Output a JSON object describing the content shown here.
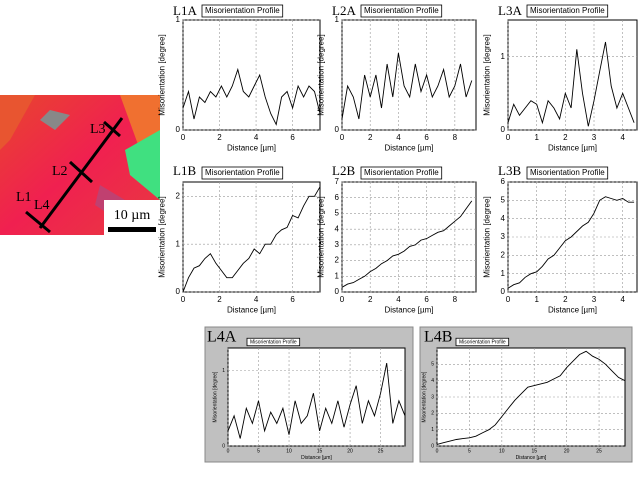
{
  "micrograph": {
    "line_labels": [
      "L1",
      "L2",
      "L3",
      "L4"
    ],
    "scale_bar": "10 µm"
  },
  "chart_data": [
    {
      "type": "line",
      "label": "L1A",
      "title": "Misorientation Profile",
      "xlabel": "Distance [µm]",
      "ylabel": "Misorientation [degree]",
      "color": "#000000",
      "grid": true,
      "x": [
        0,
        0.3,
        0.6,
        0.9,
        1.2,
        1.5,
        1.8,
        2.1,
        2.4,
        2.7,
        3.0,
        3.3,
        3.6,
        3.9,
        4.2,
        4.5,
        4.8,
        5.1,
        5.4,
        5.7,
        6.0,
        6.3,
        6.6,
        6.9,
        7.2,
        7.5
      ],
      "values": [
        0.2,
        0.35,
        0.1,
        0.3,
        0.25,
        0.35,
        0.3,
        0.4,
        0.3,
        0.4,
        0.55,
        0.35,
        0.3,
        0.4,
        0.5,
        0.3,
        0.15,
        0.05,
        0.3,
        0.35,
        0.2,
        0.4,
        0.3,
        0.4,
        0.35,
        0.15
      ],
      "xlim": [
        0,
        7.5
      ],
      "ylim": [
        0,
        1
      ],
      "xticks": [
        0,
        2,
        4,
        6
      ],
      "yticks": [
        0,
        1
      ]
    },
    {
      "type": "line",
      "label": "L2A",
      "title": "Misorientation Profile",
      "xlabel": "Distance [µm]",
      "ylabel": "Misorientation [degree]",
      "color": "#000000",
      "grid": true,
      "x": [
        0,
        0.4,
        0.8,
        1.2,
        1.6,
        2.0,
        2.4,
        2.8,
        3.2,
        3.6,
        4.0,
        4.4,
        4.8,
        5.2,
        5.6,
        6.0,
        6.4,
        6.8,
        7.2,
        7.6,
        8.0,
        8.4,
        8.8,
        9.2
      ],
      "values": [
        0.1,
        0.4,
        0.3,
        0.1,
        0.5,
        0.3,
        0.5,
        0.2,
        0.6,
        0.3,
        0.7,
        0.4,
        0.3,
        0.6,
        0.35,
        0.5,
        0.3,
        0.4,
        0.55,
        0.3,
        0.4,
        0.6,
        0.3,
        0.45
      ],
      "xlim": [
        0,
        9.5
      ],
      "ylim": [
        0,
        1
      ],
      "xticks": [
        0,
        2,
        4,
        6,
        8
      ],
      "yticks": [
        0,
        1
      ]
    },
    {
      "type": "line",
      "label": "L3A",
      "title": "Misorientation Profile",
      "xlabel": "Distance [µm]",
      "ylabel": "Misorientation [degree]",
      "color": "#000000",
      "grid": true,
      "x": [
        0,
        0.2,
        0.4,
        0.6,
        0.8,
        1.0,
        1.2,
        1.4,
        1.6,
        1.8,
        2.0,
        2.2,
        2.4,
        2.6,
        2.8,
        3.0,
        3.2,
        3.4,
        3.6,
        3.8,
        4.0,
        4.2,
        4.4
      ],
      "values": [
        0.1,
        0.35,
        0.2,
        0.3,
        0.4,
        0.35,
        0.1,
        0.4,
        0.3,
        0.15,
        0.5,
        0.3,
        1.1,
        0.5,
        0.05,
        0.4,
        0.8,
        1.2,
        0.6,
        0.3,
        0.5,
        0.3,
        0.1
      ],
      "xlim": [
        0,
        4.5
      ],
      "ylim": [
        0,
        1.5
      ],
      "xticks": [
        0,
        1,
        2,
        3,
        4
      ],
      "yticks": [
        0,
        1
      ]
    },
    {
      "type": "line",
      "label": "L1B",
      "title": "Misorientation Profile",
      "xlabel": "Distance [µm]",
      "ylabel": "Misorientation [degree]",
      "color": "#000000",
      "grid": true,
      "x": [
        0,
        0.3,
        0.6,
        0.9,
        1.2,
        1.5,
        1.8,
        2.1,
        2.4,
        2.7,
        3.0,
        3.3,
        3.6,
        3.9,
        4.2,
        4.5,
        4.8,
        5.1,
        5.4,
        5.7,
        6.0,
        6.3,
        6.6,
        6.9,
        7.2,
        7.5
      ],
      "values": [
        0,
        0.3,
        0.5,
        0.55,
        0.7,
        0.8,
        0.6,
        0.45,
        0.3,
        0.3,
        0.45,
        0.6,
        0.7,
        0.9,
        0.8,
        1.0,
        1.0,
        1.2,
        1.3,
        1.35,
        1.6,
        1.55,
        1.8,
        2.0,
        2.0,
        2.2
      ],
      "xlim": [
        0,
        7.5
      ],
      "ylim": [
        0,
        2.3
      ],
      "xticks": [
        0,
        2,
        4,
        6
      ],
      "yticks": [
        0,
        1,
        2
      ]
    },
    {
      "type": "line",
      "label": "L2B",
      "title": "Misorientation Profile",
      "xlabel": "Distance [µm]",
      "ylabel": "Misorientation [degree]",
      "color": "#000000",
      "grid": true,
      "x": [
        0,
        0.4,
        0.8,
        1.2,
        1.6,
        2.0,
        2.4,
        2.8,
        3.2,
        3.6,
        4.0,
        4.4,
        4.8,
        5.2,
        5.6,
        6.0,
        6.4,
        6.8,
        7.2,
        7.6,
        8.0,
        8.4,
        8.8,
        9.2
      ],
      "values": [
        0.3,
        0.5,
        0.6,
        0.8,
        1.0,
        1.3,
        1.5,
        1.8,
        2.0,
        2.3,
        2.4,
        2.6,
        2.9,
        3.0,
        3.3,
        3.4,
        3.6,
        3.8,
        3.9,
        4.2,
        4.5,
        4.8,
        5.3,
        5.8
      ],
      "xlim": [
        0,
        9.5
      ],
      "ylim": [
        0,
        7
      ],
      "xticks": [
        0,
        2,
        4,
        6,
        8
      ],
      "yticks": [
        0,
        1,
        2,
        3,
        4,
        5,
        6,
        7
      ]
    },
    {
      "type": "line",
      "label": "L3B",
      "title": "Misorientation Profile",
      "xlabel": "Distance [µm]",
      "ylabel": "Misorientation [degree]",
      "color": "#000000",
      "grid": true,
      "x": [
        0,
        0.2,
        0.4,
        0.6,
        0.8,
        1.0,
        1.2,
        1.4,
        1.6,
        1.8,
        2.0,
        2.2,
        2.4,
        2.6,
        2.8,
        3.0,
        3.2,
        3.4,
        3.6,
        3.8,
        4.0,
        4.2,
        4.4
      ],
      "values": [
        0.2,
        0.4,
        0.5,
        0.8,
        1.0,
        1.1,
        1.4,
        1.8,
        2.0,
        2.4,
        2.8,
        3.0,
        3.3,
        3.6,
        3.8,
        4.3,
        5.0,
        5.2,
        5.1,
        5.0,
        5.1,
        4.9,
        4.9
      ],
      "xlim": [
        0,
        4.5
      ],
      "ylim": [
        0,
        6
      ],
      "xticks": [
        0,
        1,
        2,
        3,
        4
      ],
      "yticks": [
        0,
        1,
        2,
        3,
        4,
        5,
        6
      ]
    },
    {
      "type": "line",
      "label": "L4A",
      "title": "Misorientation Profile",
      "xlabel": "Distance [µm]",
      "ylabel": "Misorientation [degree]",
      "color": "#000000",
      "grid": true,
      "x": [
        0,
        1,
        2,
        3,
        4,
        5,
        6,
        7,
        8,
        9,
        10,
        11,
        12,
        13,
        14,
        15,
        16,
        17,
        18,
        19,
        20,
        21,
        22,
        23,
        24,
        25,
        26,
        27,
        28,
        29
      ],
      "values": [
        0.2,
        0.4,
        0.1,
        0.5,
        0.3,
        0.6,
        0.2,
        0.45,
        0.3,
        0.5,
        0.15,
        0.6,
        0.3,
        0.4,
        0.7,
        0.2,
        0.5,
        0.3,
        0.6,
        0.25,
        0.55,
        0.8,
        0.3,
        0.6,
        0.4,
        0.7,
        1.1,
        0.3,
        0.6,
        0.4
      ],
      "xlim": [
        0,
        29
      ],
      "ylim": [
        0,
        1.3
      ],
      "xticks": [
        0,
        5,
        10,
        15,
        20,
        25
      ],
      "yticks": [
        0,
        1
      ]
    },
    {
      "type": "line",
      "label": "L4B",
      "title": "Misorientation Profile",
      "xlabel": "Distance [µm]",
      "ylabel": "Misorientation [degree]",
      "color": "#000000",
      "grid": true,
      "x": [
        0,
        1,
        2,
        3,
        4,
        5,
        6,
        7,
        8,
        9,
        10,
        11,
        12,
        13,
        14,
        15,
        16,
        17,
        18,
        19,
        20,
        21,
        22,
        23,
        24,
        25,
        26,
        27,
        28,
        29
      ],
      "values": [
        0.1,
        0.2,
        0.3,
        0.4,
        0.45,
        0.5,
        0.6,
        0.8,
        1.0,
        1.3,
        1.8,
        2.3,
        2.8,
        3.2,
        3.6,
        3.7,
        3.8,
        3.9,
        4.1,
        4.3,
        4.8,
        5.2,
        5.6,
        5.8,
        5.5,
        5.3,
        5.0,
        4.6,
        4.2,
        4.0
      ],
      "xlim": [
        0,
        29
      ],
      "ylim": [
        0,
        6
      ],
      "xticks": [
        0,
        5,
        10,
        15,
        20,
        25
      ],
      "yticks": [
        0,
        1,
        2,
        3,
        4,
        5
      ]
    }
  ]
}
